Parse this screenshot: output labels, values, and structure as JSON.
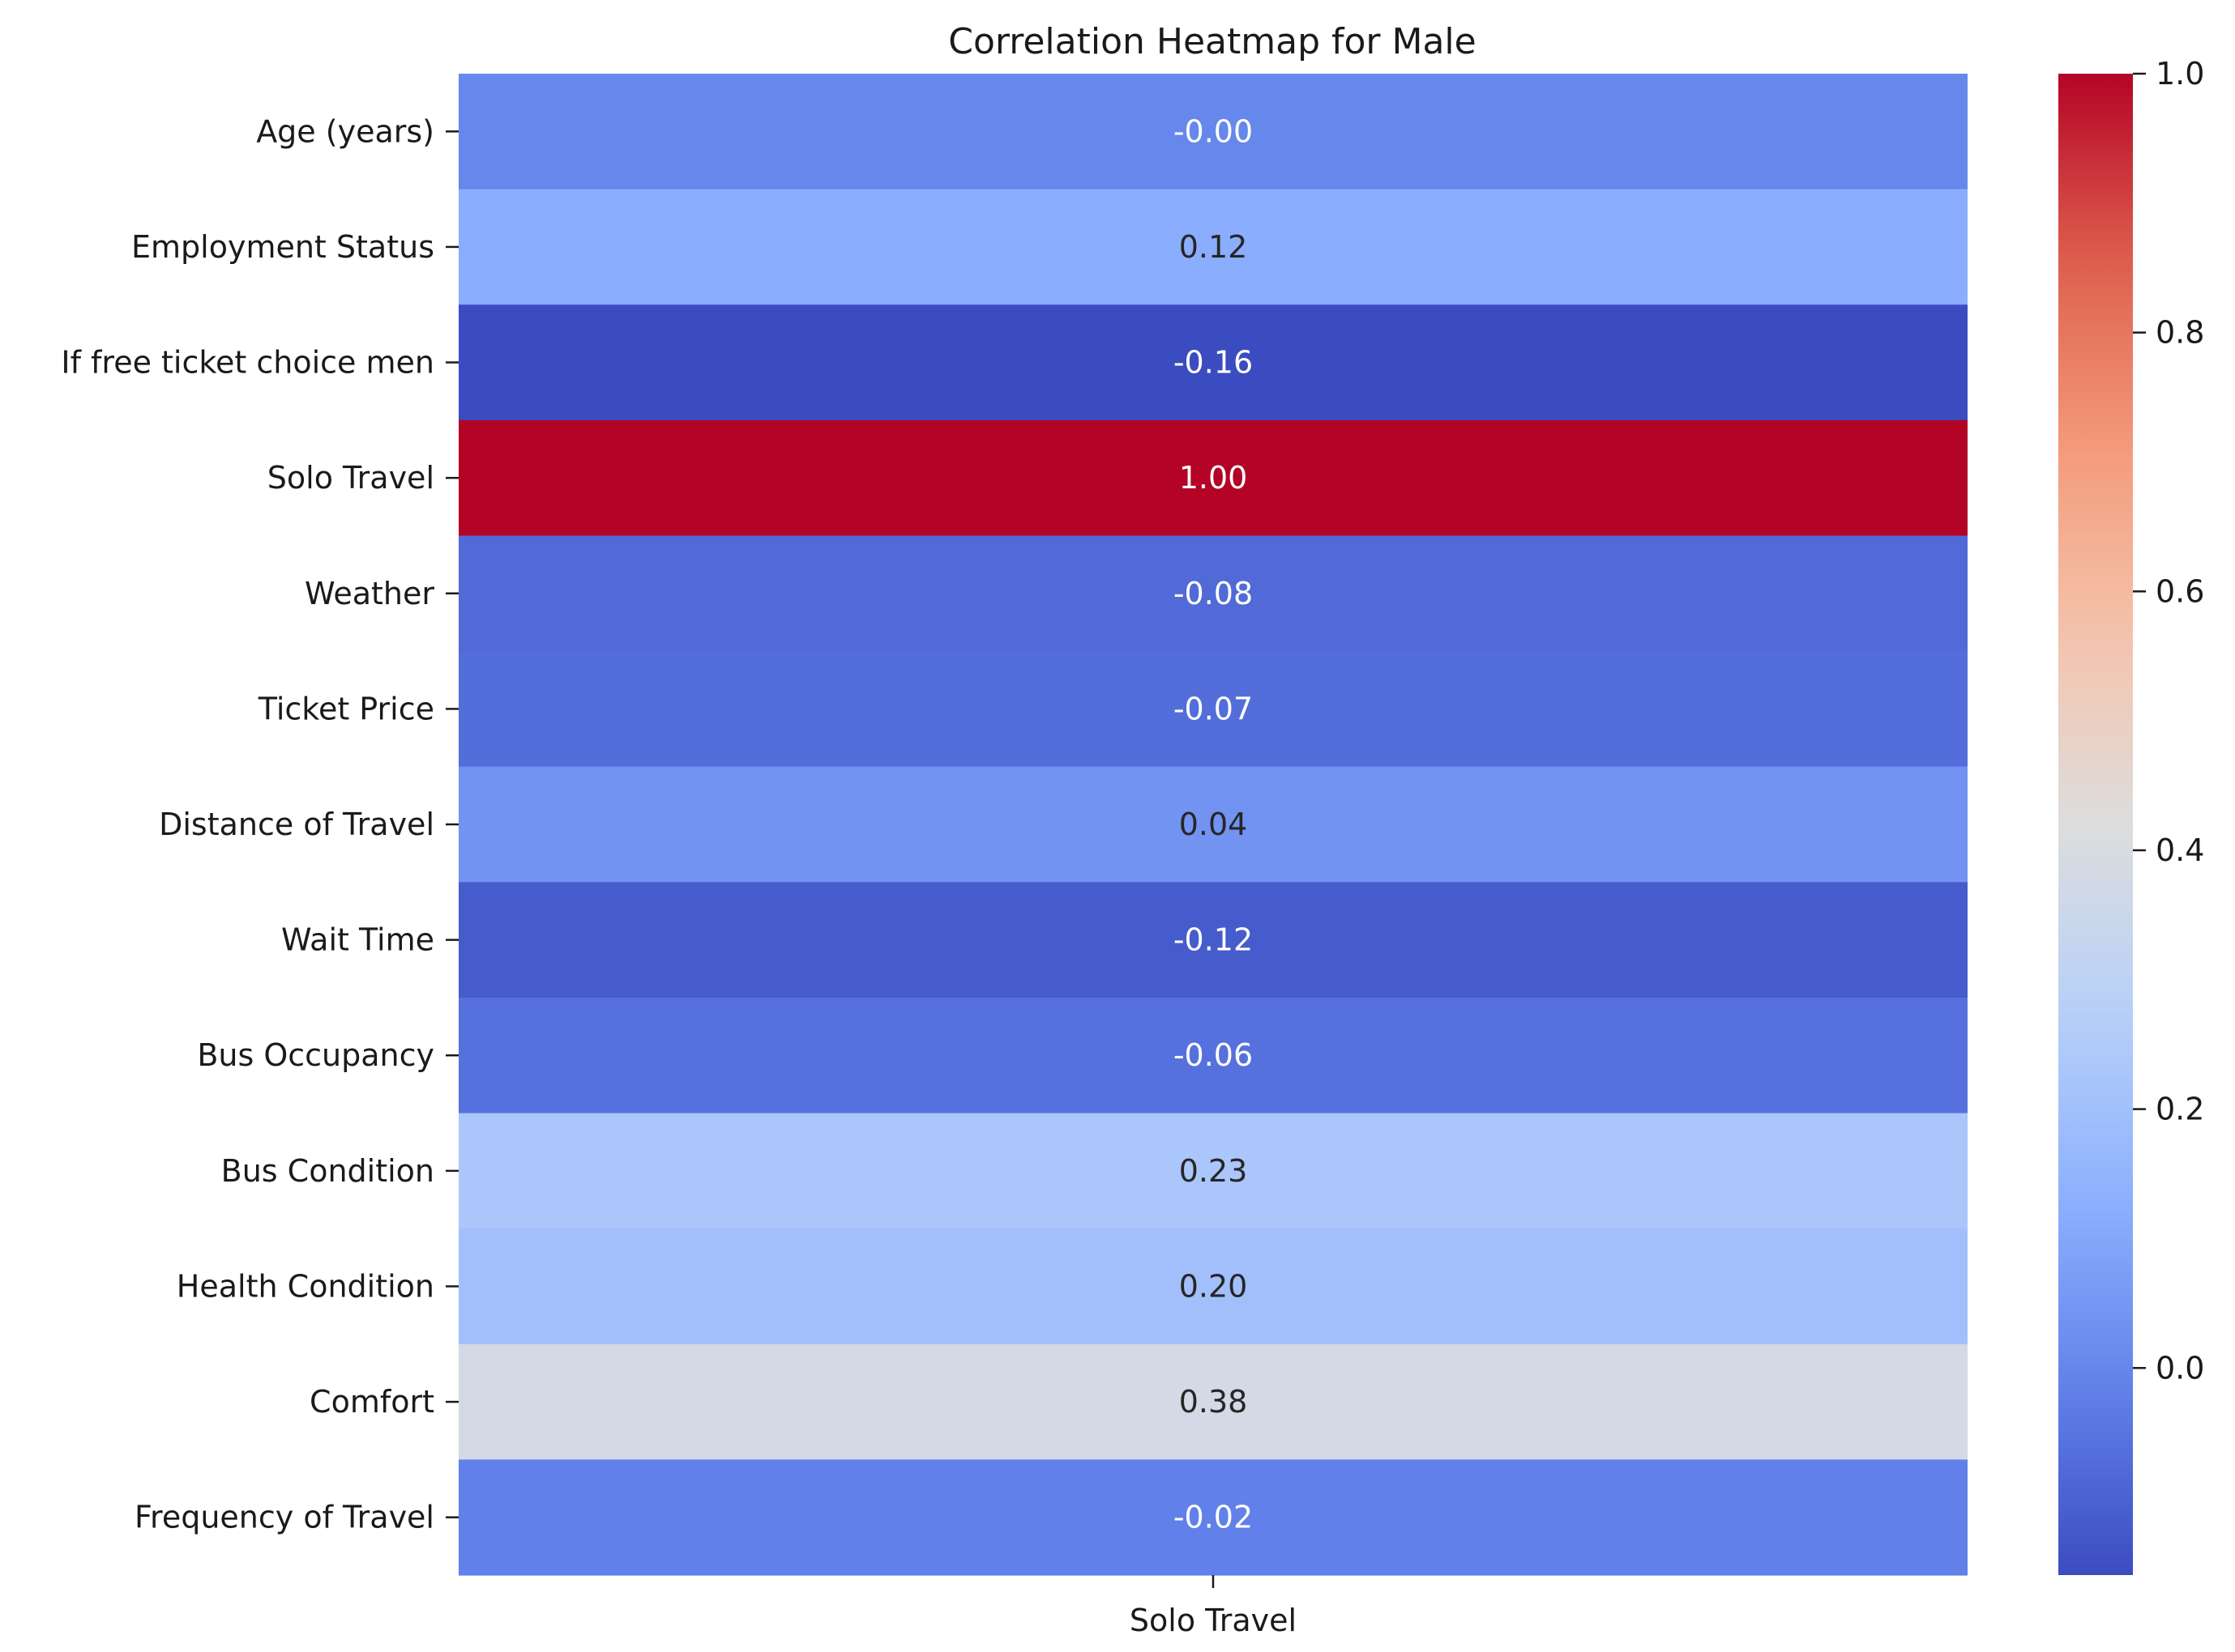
{
  "chart_data": {
    "type": "heatmap",
    "title": "Correlation Heatmap for Male",
    "colormap": "coolwarm",
    "x_categories": [
      "Solo Travel"
    ],
    "y_categories": [
      "Age (years)",
      "Employment Status",
      "If free ticket choice men",
      "Solo Travel",
      "Weather",
      "Ticket Price",
      "Distance of Travel",
      "Wait Time",
      "Bus Occupancy",
      "Bus Condition",
      "Health Condition",
      "Comfort",
      "Frequency of Travel"
    ],
    "values": [
      -0.0,
      0.12,
      -0.16,
      1.0,
      -0.08,
      -0.07,
      0.04,
      -0.12,
      -0.06,
      0.23,
      0.2,
      0.38,
      -0.02
    ],
    "value_labels": [
      "-0.00",
      "0.12",
      "-0.16",
      "1.00",
      "-0.08",
      "-0.07",
      "0.04",
      "-0.12",
      "-0.06",
      "0.23",
      "0.20",
      "0.38",
      "-0.02"
    ],
    "colorbar": {
      "range": [
        -0.16,
        1.0
      ],
      "ticks": [
        0.0,
        0.2,
        0.4,
        0.6,
        0.8,
        1.0
      ],
      "tick_labels": [
        "0.0",
        "0.2",
        "0.4",
        "0.6",
        "0.8",
        "1.0"
      ],
      "placement": "right"
    },
    "grid": false,
    "xlabel": "",
    "ylabel": ""
  }
}
